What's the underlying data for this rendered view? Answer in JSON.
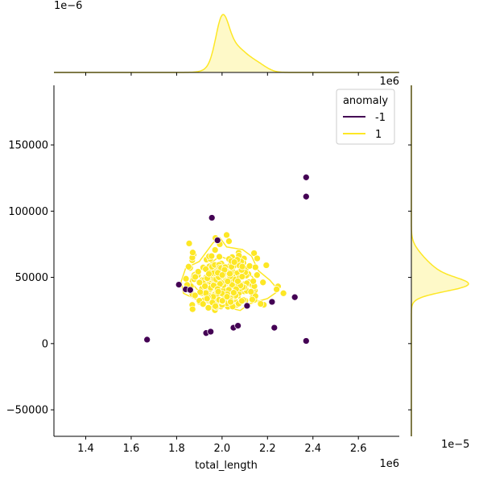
{
  "chart_data": {
    "type": "scatter",
    "variant": "jointplot",
    "title": "",
    "xlabel": "total_length",
    "ylabel": "",
    "x_scale_label": "1e6",
    "top_scale_label": "1e6",
    "top_density_label": "1e−6",
    "right_density_label": "1e−5",
    "xlim": [
      1.26,
      2.78
    ],
    "ylim": [
      -70000,
      195000
    ],
    "x_ticks": [
      1.4,
      1.6,
      1.8,
      2.0,
      2.2,
      2.4,
      2.6
    ],
    "x_tick_labels": [
      "1.4",
      "1.6",
      "1.8",
      "2.0",
      "2.2",
      "2.4",
      "2.6"
    ],
    "y_ticks": [
      -50000,
      0,
      50000,
      100000,
      150000
    ],
    "y_tick_labels": [
      "−50000",
      "0",
      "50000",
      "100000",
      "150000"
    ],
    "grid": false,
    "legend": {
      "title": "anomaly",
      "placement": "top-right",
      "entries": [
        "-1",
        "1"
      ]
    },
    "series": [
      {
        "name": "-1",
        "color": "#440154",
        "points": [
          [
            1.67,
            3000
          ],
          [
            1.81,
            44500
          ],
          [
            1.84,
            41000
          ],
          [
            1.86,
            40500
          ],
          [
            1.93,
            8000
          ],
          [
            1.95,
            9000
          ],
          [
            1.955,
            95000
          ],
          [
            1.98,
            78000
          ],
          [
            2.05,
            12000
          ],
          [
            2.07,
            13500
          ],
          [
            2.11,
            28500
          ],
          [
            2.22,
            31500
          ],
          [
            2.23,
            12000
          ],
          [
            2.32,
            35000
          ],
          [
            2.37,
            2000
          ],
          [
            2.37,
            111000
          ],
          [
            2.37,
            125500
          ]
        ]
      },
      {
        "name": "1",
        "color": "#fde725",
        "cluster": {
          "x_range": [
            1.84,
            2.27
          ],
          "y_range": [
            25000,
            82000
          ],
          "center": [
            2.01,
            45000
          ]
        }
      }
    ],
    "marginal_x": {
      "peak_x": 2.0,
      "shape": "kde"
    },
    "marginal_y": {
      "peak_y": 44000,
      "shape": "kde"
    }
  }
}
